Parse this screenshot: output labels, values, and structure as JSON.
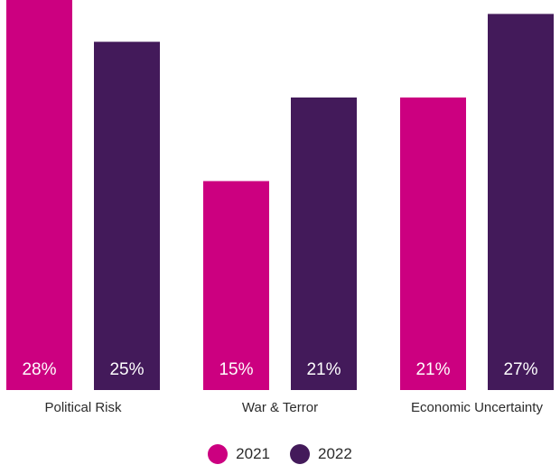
{
  "chart_data": {
    "type": "bar",
    "categories": [
      "Political Risk",
      "War & Terror",
      "Economic Uncertainty"
    ],
    "series": [
      {
        "name": "2021",
        "values": [
          28,
          15,
          21
        ],
        "labels": [
          "28%",
          "15%",
          "21%"
        ],
        "color": "#cc0080"
      },
      {
        "name": "2022",
        "values": [
          25,
          21,
          27
        ],
        "labels": [
          "25%",
          "21%",
          "27%"
        ],
        "color": "#431a5a"
      }
    ],
    "ylim": [
      0,
      28
    ],
    "grid": false,
    "legend_position": "bottom-center"
  }
}
